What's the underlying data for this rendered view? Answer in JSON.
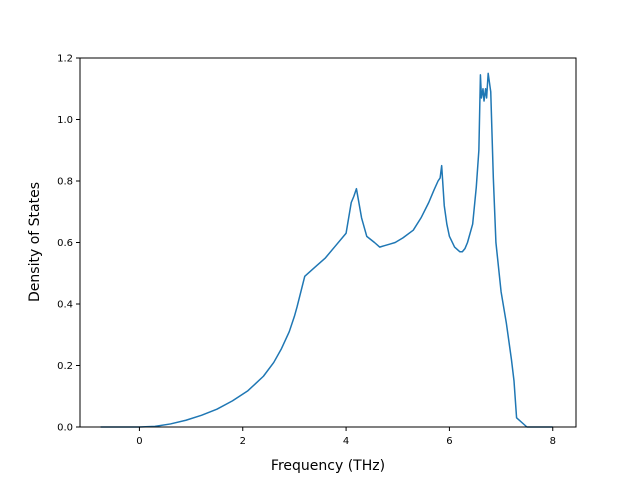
{
  "chart_data": {
    "type": "line",
    "title": "",
    "xlabel": "Frequency (THz)",
    "ylabel": "Density of States",
    "xlim": [
      -1.15,
      8.45
    ],
    "ylim": [
      0.0,
      1.2
    ],
    "xticks": [
      0,
      2,
      4,
      6,
      8
    ],
    "yticks": [
      0.0,
      0.2,
      0.4,
      0.6,
      0.8,
      1.0,
      1.2
    ],
    "grid": false,
    "legend": "none",
    "series": [
      {
        "color": "#1f77b4",
        "x": [
          -0.75,
          0.0,
          0.3,
          0.6,
          0.9,
          1.2,
          1.5,
          1.8,
          2.1,
          2.4,
          2.6,
          2.75,
          2.9,
          3.0,
          3.05,
          3.2,
          3.4,
          3.6,
          3.8,
          4.0,
          4.1,
          4.15,
          4.2,
          4.3,
          4.4,
          4.55,
          4.65,
          4.75,
          4.85,
          4.95,
          5.1,
          5.3,
          5.45,
          5.6,
          5.7,
          5.78,
          5.82,
          5.85,
          5.9,
          5.95,
          6.0,
          6.1,
          6.2,
          6.25,
          6.3,
          6.35,
          6.45,
          6.52,
          6.57,
          6.6,
          6.62,
          6.65,
          6.67,
          6.7,
          6.72,
          6.75,
          6.8,
          6.85,
          6.9,
          7.0,
          7.1,
          7.2,
          7.25,
          7.3,
          7.5,
          8.0
        ],
        "y": [
          0.0,
          0.0,
          0.002,
          0.01,
          0.022,
          0.038,
          0.058,
          0.085,
          0.118,
          0.165,
          0.21,
          0.255,
          0.31,
          0.36,
          0.39,
          0.49,
          0.52,
          0.55,
          0.59,
          0.63,
          0.73,
          0.75,
          0.775,
          0.68,
          0.62,
          0.6,
          0.585,
          0.59,
          0.595,
          0.6,
          0.615,
          0.64,
          0.68,
          0.73,
          0.77,
          0.8,
          0.81,
          0.85,
          0.72,
          0.66,
          0.62,
          0.585,
          0.57,
          0.57,
          0.58,
          0.6,
          0.66,
          0.78,
          0.9,
          1.145,
          1.07,
          1.1,
          1.06,
          1.1,
          1.07,
          1.15,
          1.09,
          0.81,
          0.6,
          0.44,
          0.34,
          0.22,
          0.15,
          0.03,
          0.0,
          0.0
        ]
      }
    ]
  }
}
